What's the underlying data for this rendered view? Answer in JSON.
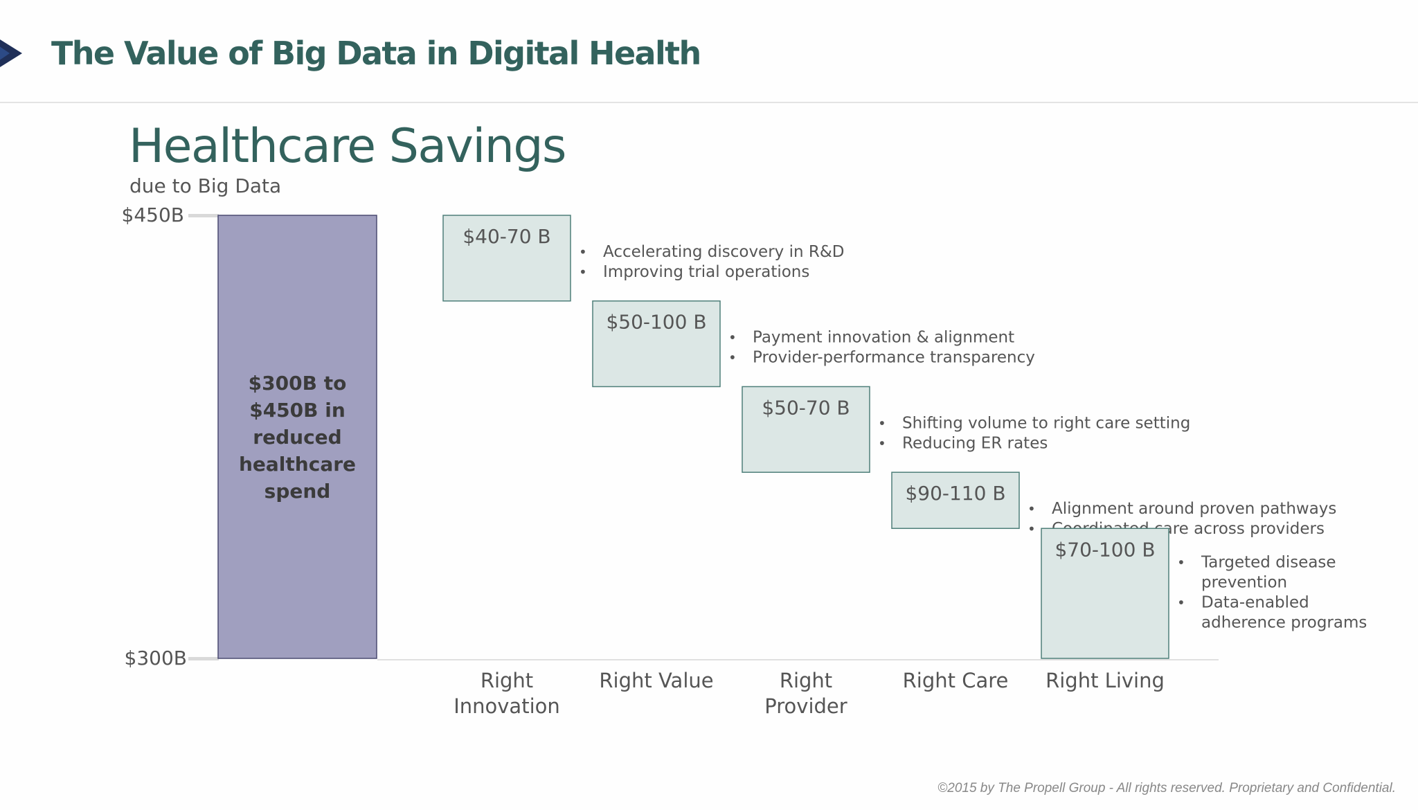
{
  "header": {
    "title": "The Value of Big Data in Digital Health",
    "arrow_icon": "navy-arrow-icon",
    "arrow_color": "#1f2f58"
  },
  "slide": {
    "title": "Healthcare Savings",
    "subtitle": "due to Big Data"
  },
  "chart_data": {
    "type": "bar",
    "ylim": [
      300,
      450
    ],
    "yticks": [
      "$450B",
      "$300B"
    ],
    "total": {
      "range": [
        300,
        450
      ],
      "label_lines": [
        "$300B to",
        "$450B in",
        "reduced",
        "healthcare",
        "spend"
      ],
      "color": "#a09fbf"
    },
    "steps": [
      {
        "category_lines": [
          "Right",
          "Innovation"
        ],
        "value_label": "$40-70 B",
        "low": 421,
        "high": 450,
        "bullets": [
          [
            "Accelerating discovery  in R&D"
          ],
          [
            "Improving trial operations"
          ]
        ]
      },
      {
        "category_lines": [
          "Right Value"
        ],
        "value_label": "$50-100 B",
        "low": 392,
        "high": 421,
        "bullets": [
          [
            "Payment innovation & alignment"
          ],
          [
            "Provider-performance transparency"
          ]
        ]
      },
      {
        "category_lines": [
          "Right",
          "Provider"
        ],
        "value_label": "$50-70 B",
        "low": 363,
        "high": 392,
        "bullets": [
          [
            "Shifting volume to right care setting"
          ],
          [
            "Reducing ER rates"
          ]
        ]
      },
      {
        "category_lines": [
          "Right Care"
        ],
        "value_label": "$90-110 B",
        "low": 344,
        "high": 363,
        "bullets": [
          [
            "Alignment around proven pathways"
          ],
          [
            "Coordinated care across providers"
          ]
        ]
      },
      {
        "category_lines": [
          "Right Living"
        ],
        "value_label": "$70-100 B",
        "low": 300,
        "high": 344,
        "bullets": [
          [
            "Targeted disease",
            "prevention"
          ],
          [
            "Data-enabled",
            "adherence programs"
          ]
        ]
      }
    ],
    "colors": {
      "box_fill": "#dce7e5",
      "box_stroke": "#4e7f79",
      "total_stroke": "#4a4a70",
      "tick_bar": "#d9d9d9"
    }
  },
  "footer": {
    "copyright": "©2015 by The Propell Group -  All rights reserved. Proprietary and Confidential."
  }
}
